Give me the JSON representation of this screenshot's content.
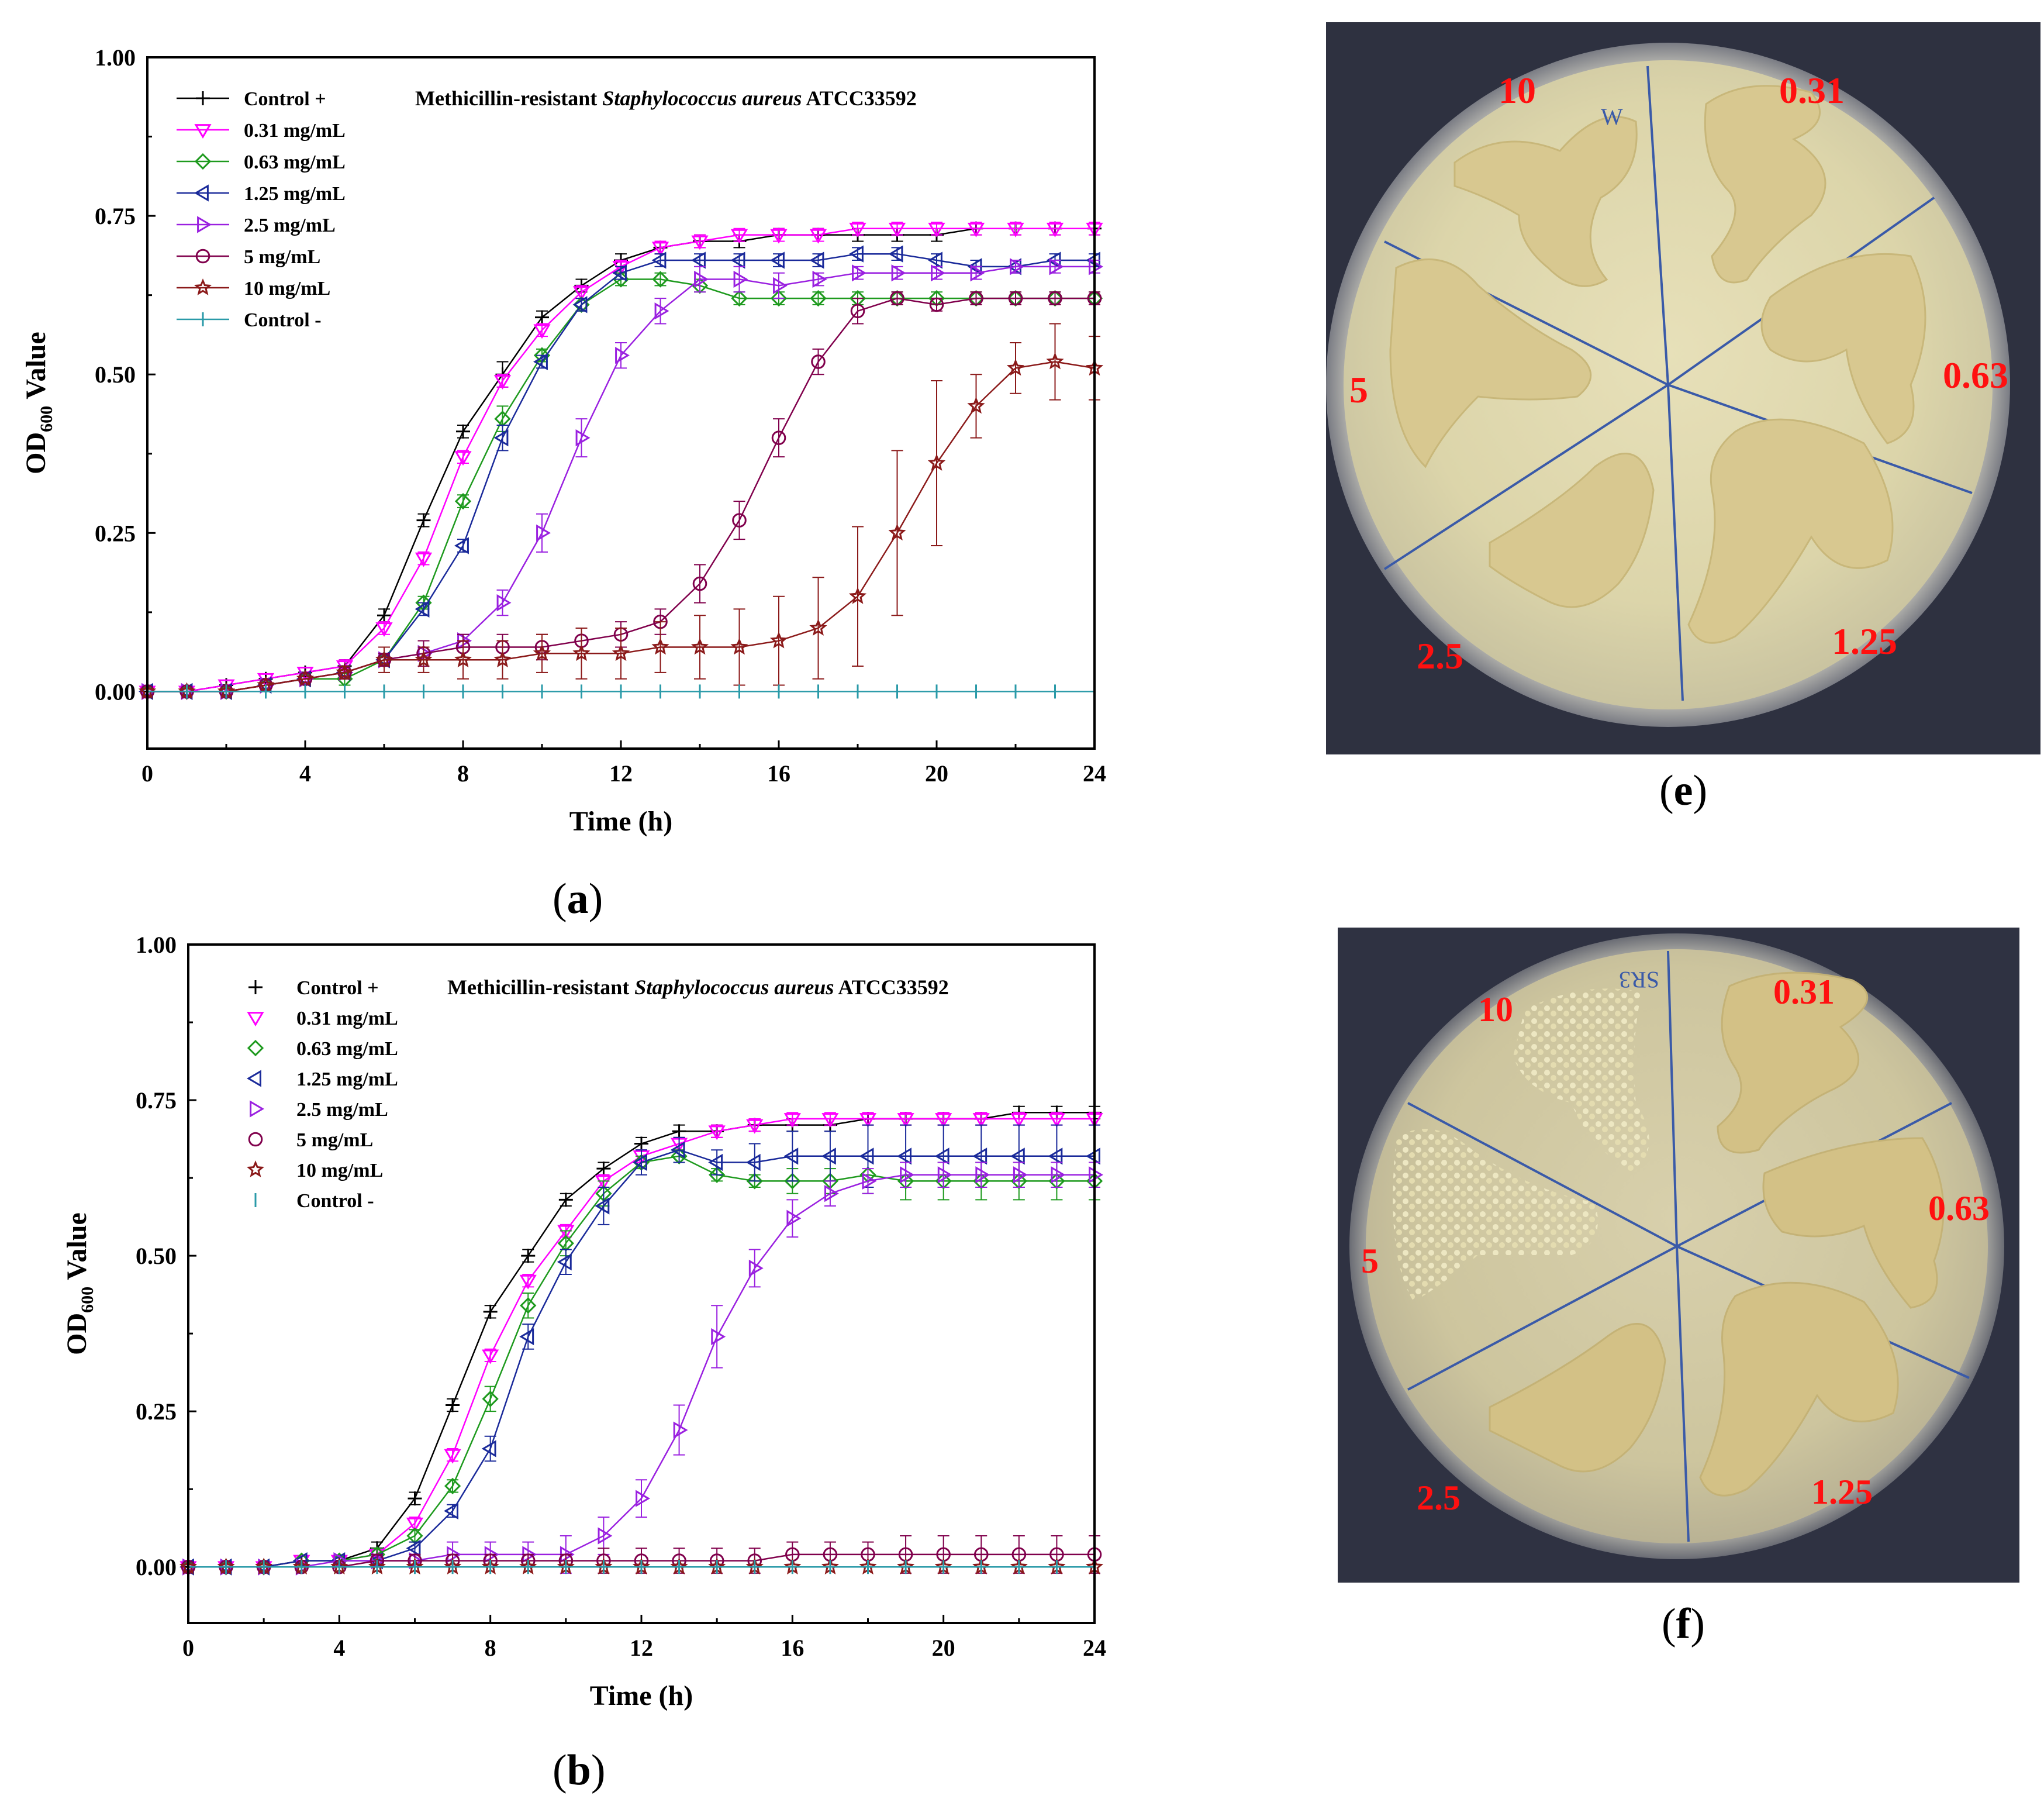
{
  "panels": {
    "a": {
      "open": "(",
      "letter": "a",
      "close": ")"
    },
    "b": {
      "open": "(",
      "letter": "b",
      "close": ")"
    },
    "e": {
      "open": "(",
      "letter": "e",
      "close": ")"
    },
    "f": {
      "open": "(",
      "letter": "f",
      "close": ")"
    }
  },
  "colors": {
    "Control +": "#000000",
    "0.31 mg/mL": "#ff00ff",
    "0.63 mg/mL": "#1e9a1e",
    "1.25 mg/mL": "#1a2a9a",
    "2.5 mg/mL": "#9a20e0",
    "5 mg/mL": "#80004c",
    "10 mg/mL": "#8b1a1a",
    "Control -": "#2a9aa8"
  },
  "markers": {
    "Control +": "plus",
    "0.31 mg/mL": "tri-down",
    "0.63 mg/mL": "diamond",
    "1.25 mg/mL": "tri-left",
    "2.5 mg/mL": "tri-right",
    "5 mg/mL": "circle",
    "10 mg/mL": "star",
    "Control -": "vbar"
  },
  "chart_data": [
    {
      "type": "line",
      "panel": "a",
      "annotation": {
        "pre": "Methicillin-resistant ",
        "italic": "Staphylococcus aureus",
        "post": " ATCC33592"
      },
      "xlabel": "Time (h)",
      "ylabel": {
        "pre": "OD",
        "sub": "600",
        "post": " Value"
      },
      "xlim": [
        0,
        24
      ],
      "ylim": [
        -0.09,
        1.0
      ],
      "xticks": [
        0,
        4,
        8,
        12,
        16,
        20,
        24
      ],
      "yticks": [
        "0.00",
        "0.25",
        "0.50",
        "0.75",
        "1.00"
      ],
      "legend_position": "top-left",
      "x": [
        0,
        1,
        2,
        3,
        4,
        5,
        6,
        7,
        8,
        9,
        10,
        11,
        12,
        13,
        14,
        15,
        16,
        17,
        18,
        19,
        20,
        21,
        22,
        23,
        24
      ],
      "series": [
        {
          "name": "Control +",
          "values": [
            0,
            0,
            0.01,
            0.02,
            0.03,
            0.04,
            0.12,
            0.27,
            0.41,
            0.5,
            0.59,
            0.64,
            0.68,
            0.7,
            0.71,
            0.71,
            0.72,
            0.72,
            0.72,
            0.72,
            0.72,
            0.73,
            0.73,
            0.73,
            0.73
          ],
          "err": [
            0,
            0,
            0,
            0,
            0,
            0.01,
            0.01,
            0.01,
            0.01,
            0.02,
            0.01,
            0.01,
            0.01,
            0.01,
            0.01,
            0.01,
            0.01,
            0.01,
            0.01,
            0.01,
            0.01,
            0.01,
            0.01,
            0.01,
            0.01
          ]
        },
        {
          "name": "0.31 mg/mL",
          "values": [
            0,
            0,
            0.01,
            0.02,
            0.03,
            0.04,
            0.1,
            0.21,
            0.37,
            0.49,
            0.57,
            0.63,
            0.67,
            0.7,
            0.71,
            0.72,
            0.72,
            0.72,
            0.73,
            0.73,
            0.73,
            0.73,
            0.73,
            0.73,
            0.73
          ],
          "err": [
            0,
            0,
            0,
            0,
            0,
            0.01,
            0.01,
            0.01,
            0.01,
            0.01,
            0.01,
            0.01,
            0.01,
            0.01,
            0.01,
            0.01,
            0.01,
            0.01,
            0.01,
            0.01,
            0.01,
            0.01,
            0.01,
            0.01,
            0.01
          ]
        },
        {
          "name": "0.63 mg/mL",
          "values": [
            0,
            0,
            0,
            0.01,
            0.02,
            0.02,
            0.05,
            0.14,
            0.3,
            0.43,
            0.53,
            0.61,
            0.65,
            0.65,
            0.64,
            0.62,
            0.62,
            0.62,
            0.62,
            0.62,
            0.62,
            0.62,
            0.62,
            0.62,
            0.62
          ],
          "err": [
            0,
            0,
            0,
            0,
            0,
            0.01,
            0.01,
            0.01,
            0.01,
            0.02,
            0.01,
            0.01,
            0.01,
            0.01,
            0.01,
            0.01,
            0.01,
            0.01,
            0.01,
            0.01,
            0.01,
            0.01,
            0.01,
            0.01,
            0.01
          ]
        },
        {
          "name": "1.25 mg/mL",
          "values": [
            0,
            0,
            0,
            0.01,
            0.02,
            0.03,
            0.05,
            0.13,
            0.23,
            0.4,
            0.52,
            0.61,
            0.66,
            0.68,
            0.68,
            0.68,
            0.68,
            0.68,
            0.69,
            0.69,
            0.68,
            0.67,
            0.67,
            0.68,
            0.68
          ],
          "err": [
            0,
            0,
            0,
            0,
            0,
            0.01,
            0.01,
            0.01,
            0.01,
            0.02,
            0.01,
            0.01,
            0.01,
            0.01,
            0.01,
            0.01,
            0.01,
            0.01,
            0.01,
            0.01,
            0.01,
            0.01,
            0.01,
            0.01,
            0.01
          ]
        },
        {
          "name": "2.5 mg/mL",
          "values": [
            0,
            0,
            0,
            0.01,
            0.02,
            0.03,
            0.05,
            0.06,
            0.08,
            0.14,
            0.25,
            0.4,
            0.53,
            0.6,
            0.65,
            0.65,
            0.64,
            0.65,
            0.66,
            0.66,
            0.66,
            0.66,
            0.67,
            0.67,
            0.67
          ],
          "err": [
            0,
            0,
            0,
            0,
            0,
            0.01,
            0.01,
            0.01,
            0.01,
            0.02,
            0.03,
            0.03,
            0.02,
            0.02,
            0.02,
            0.02,
            0.02,
            0.01,
            0.01,
            0.01,
            0.01,
            0.01,
            0.01,
            0.01,
            0.01
          ]
        },
        {
          "name": "5 mg/mL",
          "values": [
            0,
            0,
            0,
            0.01,
            0.02,
            0.03,
            0.05,
            0.06,
            0.07,
            0.07,
            0.07,
            0.08,
            0.09,
            0.11,
            0.17,
            0.27,
            0.4,
            0.52,
            0.6,
            0.62,
            0.61,
            0.62,
            0.62,
            0.62,
            0.62
          ],
          "err": [
            0,
            0,
            0,
            0,
            0,
            0.01,
            0.01,
            0.02,
            0.02,
            0.02,
            0.02,
            0.02,
            0.02,
            0.02,
            0.03,
            0.03,
            0.03,
            0.02,
            0.02,
            0.01,
            0.01,
            0.01,
            0.01,
            0.01,
            0.01
          ]
        },
        {
          "name": "10 mg/mL",
          "values": [
            0,
            0,
            0,
            0.01,
            0.02,
            0.03,
            0.05,
            0.05,
            0.05,
            0.05,
            0.06,
            0.06,
            0.06,
            0.07,
            0.07,
            0.07,
            0.08,
            0.1,
            0.15,
            0.25,
            0.36,
            0.45,
            0.51,
            0.52,
            0.51
          ],
          "err": [
            0,
            0,
            0,
            0,
            0,
            0.01,
            0.02,
            0.02,
            0.03,
            0.03,
            0.03,
            0.04,
            0.04,
            0.04,
            0.05,
            0.06,
            0.07,
            0.08,
            0.11,
            0.13,
            0.13,
            0.05,
            0.04,
            0.06,
            0.05
          ]
        },
        {
          "name": "Control -",
          "values": [
            0,
            0,
            0,
            0,
            0,
            0,
            0,
            0,
            0,
            0,
            0,
            0,
            0,
            0,
            0,
            0,
            0,
            0,
            0,
            0,
            0,
            0,
            0,
            0,
            0
          ],
          "err": [
            0,
            0,
            0,
            0,
            0,
            0,
            0,
            0,
            0,
            0,
            0,
            0,
            0,
            0,
            0,
            0,
            0,
            0,
            0,
            0,
            0,
            0,
            0,
            0,
            0
          ]
        }
      ]
    },
    {
      "type": "line",
      "panel": "b",
      "annotation": {
        "pre": "Methicillin-resistant ",
        "italic": "Staphylococcus aureus",
        "post": " ATCC33592"
      },
      "xlabel": "Time (h)",
      "ylabel": {
        "pre": "OD",
        "sub": "600",
        "post": " Value"
      },
      "xlim": [
        0,
        24
      ],
      "ylim": [
        -0.09,
        1.0
      ],
      "xticks": [
        0,
        4,
        8,
        12,
        16,
        20,
        24
      ],
      "yticks": [
        "0.00",
        "0.25",
        "0.50",
        "0.75",
        "1.00"
      ],
      "legend_position": "top-left",
      "x": [
        0,
        1,
        2,
        3,
        4,
        5,
        6,
        7,
        8,
        9,
        10,
        11,
        12,
        13,
        14,
        15,
        16,
        17,
        18,
        19,
        20,
        21,
        22,
        23,
        24
      ],
      "series": [
        {
          "name": "Control +",
          "values": [
            0,
            0,
            0,
            0.01,
            0.01,
            0.03,
            0.11,
            0.26,
            0.41,
            0.5,
            0.59,
            0.64,
            0.68,
            0.7,
            0.7,
            0.71,
            0.71,
            0.71,
            0.72,
            0.72,
            0.72,
            0.72,
            0.73,
            0.73,
            0.73
          ],
          "err": [
            0,
            0,
            0,
            0,
            0,
            0.01,
            0.01,
            0.01,
            0.01,
            0.01,
            0.01,
            0.01,
            0.01,
            0.01,
            0.01,
            0.01,
            0.01,
            0.01,
            0.01,
            0.01,
            0.01,
            0.01,
            0.01,
            0.01,
            0.01
          ]
        },
        {
          "name": "0.31 mg/mL",
          "values": [
            0,
            0,
            0,
            0.01,
            0.01,
            0.02,
            0.07,
            0.18,
            0.34,
            0.46,
            0.54,
            0.62,
            0.66,
            0.68,
            0.7,
            0.71,
            0.72,
            0.72,
            0.72,
            0.72,
            0.72,
            0.72,
            0.72,
            0.72,
            0.72
          ],
          "err": [
            0,
            0,
            0,
            0,
            0,
            0.01,
            0.01,
            0.01,
            0.01,
            0.01,
            0.01,
            0.01,
            0.01,
            0.01,
            0.01,
            0.01,
            0.01,
            0.01,
            0.01,
            0.01,
            0.01,
            0.01,
            0.01,
            0.01,
            0.01
          ]
        },
        {
          "name": "0.63 mg/mL",
          "values": [
            0,
            0,
            0,
            0.01,
            0.01,
            0.02,
            0.05,
            0.13,
            0.27,
            0.42,
            0.52,
            0.6,
            0.65,
            0.66,
            0.63,
            0.62,
            0.62,
            0.62,
            0.63,
            0.62,
            0.62,
            0.62,
            0.62,
            0.62,
            0.62
          ],
          "err": [
            0,
            0,
            0,
            0,
            0,
            0.01,
            0.01,
            0.01,
            0.02,
            0.02,
            0.02,
            0.02,
            0.01,
            0.01,
            0.01,
            0.01,
            0.02,
            0.02,
            0.03,
            0.03,
            0.03,
            0.03,
            0.03,
            0.03,
            0.03
          ]
        },
        {
          "name": "1.25 mg/mL",
          "values": [
            0,
            0,
            0,
            0.01,
            0.01,
            0.01,
            0.03,
            0.09,
            0.19,
            0.37,
            0.49,
            0.58,
            0.65,
            0.67,
            0.65,
            0.65,
            0.66,
            0.66,
            0.66,
            0.66,
            0.66,
            0.66,
            0.66,
            0.66,
            0.66
          ],
          "err": [
            0,
            0,
            0,
            0,
            0,
            0.01,
            0.01,
            0.01,
            0.02,
            0.02,
            0.02,
            0.03,
            0.02,
            0.02,
            0.02,
            0.03,
            0.04,
            0.04,
            0.05,
            0.05,
            0.05,
            0.05,
            0.05,
            0.05,
            0.05
          ]
        },
        {
          "name": "2.5 mg/mL",
          "values": [
            0,
            0,
            0,
            0,
            0.01,
            0.01,
            0.01,
            0.02,
            0.02,
            0.02,
            0.02,
            0.05,
            0.11,
            0.22,
            0.37,
            0.48,
            0.56,
            0.6,
            0.62,
            0.63,
            0.63,
            0.63,
            0.63,
            0.63,
            0.63
          ],
          "err": [
            0,
            0,
            0,
            0,
            0,
            0.01,
            0.01,
            0.02,
            0.02,
            0.02,
            0.03,
            0.03,
            0.03,
            0.04,
            0.05,
            0.03,
            0.03,
            0.02,
            0.02,
            0.02,
            0.02,
            0.02,
            0.02,
            0.02,
            0.02
          ]
        },
        {
          "name": "5 mg/mL",
          "values": [
            0,
            0,
            0,
            0,
            0,
            0.01,
            0.01,
            0.01,
            0.01,
            0.01,
            0.01,
            0.01,
            0.01,
            0.01,
            0.01,
            0.01,
            0.02,
            0.02,
            0.02,
            0.02,
            0.02,
            0.02,
            0.02,
            0.02,
            0.02
          ],
          "err": [
            0,
            0,
            0,
            0,
            0,
            0.01,
            0.01,
            0.01,
            0.01,
            0.01,
            0.01,
            0.02,
            0.02,
            0.02,
            0.02,
            0.02,
            0.02,
            0.02,
            0.02,
            0.03,
            0.03,
            0.03,
            0.03,
            0.03,
            0.03
          ]
        },
        {
          "name": "10 mg/mL",
          "values": [
            0,
            0,
            0,
            0,
            0,
            0,
            0,
            0,
            0,
            0,
            0,
            0,
            0,
            0,
            0,
            0,
            0,
            0,
            0,
            0,
            0,
            0,
            0,
            0,
            0
          ],
          "err": [
            0,
            0,
            0,
            0,
            0,
            0,
            0,
            0,
            0,
            0,
            0,
            0,
            0,
            0,
            0,
            0,
            0,
            0,
            0,
            0,
            0,
            0,
            0,
            0,
            0
          ]
        },
        {
          "name": "Control -",
          "values": [
            0,
            0,
            0,
            0,
            0,
            0,
            0,
            0,
            0,
            0,
            0,
            0,
            0,
            0,
            0,
            0,
            0,
            0,
            0,
            0,
            0,
            0,
            0,
            0,
            0
          ],
          "err": [
            0,
            0,
            0,
            0,
            0,
            0,
            0,
            0,
            0,
            0,
            0,
            0,
            0,
            0,
            0,
            0,
            0,
            0,
            0,
            0,
            0,
            0,
            0,
            0,
            0
          ]
        }
      ]
    }
  ],
  "plates": {
    "e": {
      "top_marker": "W",
      "labels": [
        "10",
        "0.31",
        "0.63",
        "1.25",
        "2.5",
        "5"
      ]
    },
    "f": {
      "top_marker": "SR3",
      "labels": [
        "10",
        "0.31",
        "0.63",
        "1.25",
        "2.5",
        "5"
      ]
    }
  }
}
